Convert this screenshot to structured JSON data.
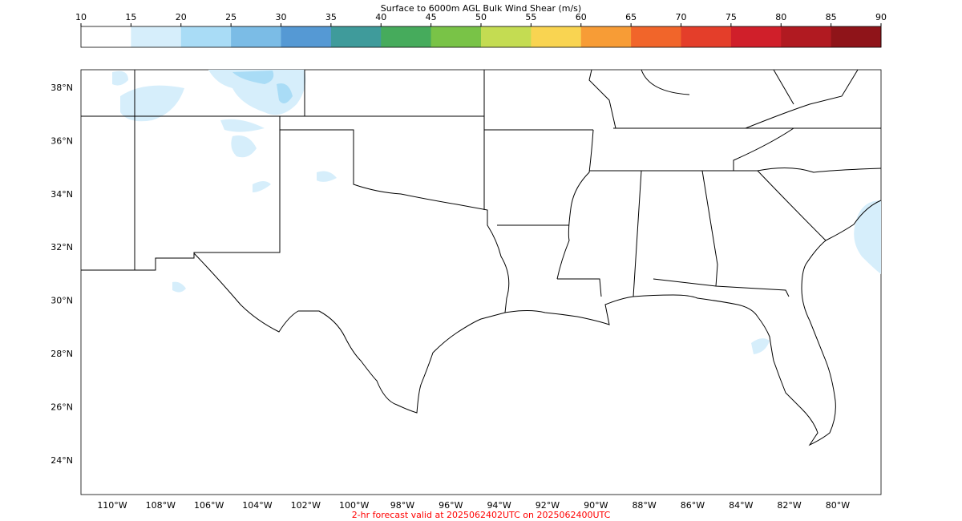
{
  "colorbar": {
    "title": "Surface to 6000m AGL Bulk Wind Shear (m/s)",
    "ticks": [
      10,
      15,
      20,
      25,
      30,
      35,
      40,
      45,
      50,
      55,
      60,
      65,
      70,
      75,
      80,
      85,
      90
    ],
    "colors": [
      "#ffffff",
      "#d6eefb",
      "#a9dcf6",
      "#7bbce6",
      "#5599d4",
      "#3f9b9b",
      "#46ab5c",
      "#79c347",
      "#c4dc52",
      "#f9d451",
      "#f79c36",
      "#f1652a",
      "#e43e2a",
      "#d01f2a",
      "#b11a21",
      "#8f1419"
    ]
  },
  "map": {
    "lat_labels": [
      "38°N",
      "36°N",
      "34°N",
      "32°N",
      "30°N",
      "28°N",
      "26°N",
      "24°N"
    ],
    "lon_labels": [
      "110°W",
      "108°W",
      "106°W",
      "104°W",
      "102°W",
      "100°W",
      "98°W",
      "96°W",
      "94°W",
      "92°W",
      "90°W",
      "88°W",
      "86°W",
      "84°W",
      "82°W",
      "80°W"
    ]
  },
  "footer": "2-hr forecast valid at 2025062402UTC on 2025062400UTC"
}
